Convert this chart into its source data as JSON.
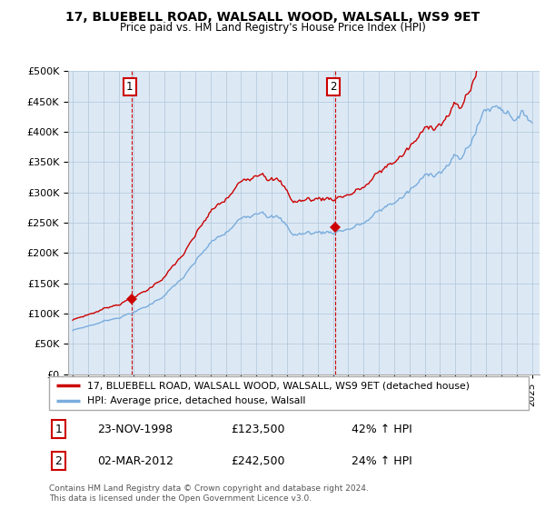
{
  "title": "17, BLUEBELL ROAD, WALSALL WOOD, WALSALL, WS9 9ET",
  "subtitle": "Price paid vs. HM Land Registry's House Price Index (HPI)",
  "legend_line1": "17, BLUEBELL ROAD, WALSALL WOOD, WALSALL, WS9 9ET (detached house)",
  "legend_line2": "HPI: Average price, detached house, Walsall",
  "sale1_date": "23-NOV-1998",
  "sale1_price": "£123,500",
  "sale1_hpi": "42% ↑ HPI",
  "sale2_date": "02-MAR-2012",
  "sale2_price": "£242,500",
  "sale2_hpi": "24% ↑ HPI",
  "footnote": "Contains HM Land Registry data © Crown copyright and database right 2024.\nThis data is licensed under the Open Government Licence v3.0.",
  "red_color": "#cc0000",
  "blue_color": "#7aacdc",
  "chart_bg_color": "#dce9f5",
  "sale1_x": 1998.88,
  "sale1_y": 123500,
  "sale2_x": 2012.17,
  "sale2_y": 242500,
  "ylim": [
    0,
    500000
  ],
  "yticks": [
    0,
    50000,
    100000,
    150000,
    200000,
    250000,
    300000,
    350000,
    400000,
    450000,
    500000
  ],
  "xlim_min": 1994.7,
  "xlim_max": 2025.5,
  "grid_color": "#b0c4d8"
}
